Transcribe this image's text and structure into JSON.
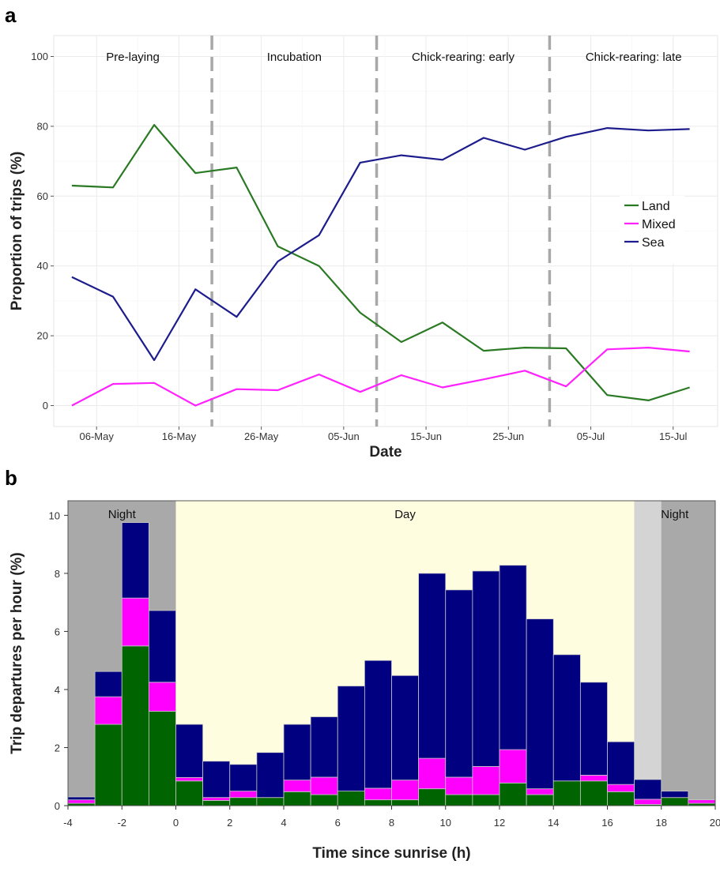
{
  "panels": {
    "a": "a",
    "b": "b"
  },
  "chart_data": [
    {
      "type": "line",
      "xlabel": "Date",
      "ylabel": "Proportion of trips (%)",
      "ylim": [
        0,
        100
      ],
      "yticks": [
        0,
        20,
        40,
        60,
        80,
        100
      ],
      "xticks": [
        "06-May",
        "16-May",
        "26-May",
        "05-Jun",
        "15-Jun",
        "25-Jun",
        "05-Jul",
        "15-Jul"
      ],
      "x": [
        "2013-05-03",
        "2013-05-08",
        "2013-05-13",
        "2013-05-18",
        "2013-05-23",
        "2013-05-28",
        "2013-06-02",
        "2013-06-07",
        "2013-06-12",
        "2013-06-17",
        "2013-06-22",
        "2013-06-27",
        "2013-07-02",
        "2013-07-07",
        "2013-07-12",
        "2013-07-17"
      ],
      "series": [
        {
          "name": "Land",
          "color": "#2a7a24",
          "values": [
            63,
            62.5,
            80.4,
            66.6,
            68.2,
            45.6,
            40,
            26.6,
            18.2,
            23.8,
            15.7,
            16.6,
            16.4,
            3,
            1.5,
            5.2
          ]
        },
        {
          "name": "Mixed",
          "color": "#ff22ff",
          "values": [
            0,
            6.2,
            6.5,
            0,
            4.7,
            4.4,
            8.9,
            3.9,
            8.7,
            5.2,
            7.5,
            10,
            5.5,
            16.1,
            16.6,
            15.5
          ]
        },
        {
          "name": "Sea",
          "color": "#1c1c8c",
          "values": [
            36.8,
            31.2,
            13,
            33.3,
            25.4,
            41.3,
            48.8,
            69.6,
            71.7,
            70.4,
            76.7,
            73.3,
            77,
            79.5,
            78.8,
            79.2
          ]
        }
      ],
      "phase_boundaries": [
        "2013-05-20",
        "2013-06-09",
        "2013-06-30"
      ],
      "phases": [
        "Pre-laying",
        "Incubation",
        "Chick-rearing: early",
        "Chick-rearing: late"
      ],
      "legend": {
        "position": "right",
        "entries": [
          "Land",
          "Mixed",
          "Sea"
        ]
      },
      "grid": true
    },
    {
      "type": "bar",
      "stacked": true,
      "xlabel": "Time since sunrise (h)",
      "ylabel": "Trip departures per hour (%)",
      "xlim": [
        -4,
        20
      ],
      "ylim": [
        0,
        10.5
      ],
      "xticks": [
        "-4",
        "-2",
        "0",
        "2",
        "4",
        "6",
        "8",
        "10",
        "12",
        "14",
        "16",
        "18",
        "20"
      ],
      "yticks": [
        "0",
        "2",
        "4",
        "6",
        "8",
        "10"
      ],
      "bins_start": -4,
      "bin_width": 1,
      "series": [
        {
          "name": "Land",
          "color": "#006400",
          "values": [
            0.08,
            2.8,
            5.5,
            3.25,
            0.85,
            0.18,
            0.28,
            0.28,
            0.48,
            0.38,
            0.5,
            0.2,
            0.2,
            0.58,
            0.38,
            0.38,
            0.78,
            0.38,
            0.85,
            0.85,
            0.48,
            0.04,
            0.28,
            0.08
          ]
        },
        {
          "name": "Mixed",
          "color": "#ff00ff",
          "values": [
            0.12,
            0.95,
            1.65,
            1.0,
            0.12,
            0.1,
            0.22,
            0.0,
            0.4,
            0.6,
            0.0,
            0.4,
            0.68,
            1.05,
            0.6,
            0.97,
            1.15,
            0.2,
            0.0,
            0.2,
            0.25,
            0.18,
            0.0,
            0.12
          ]
        },
        {
          "name": "Sea",
          "color": "#000080",
          "values": [
            0.1,
            0.87,
            2.6,
            2.47,
            1.83,
            1.25,
            0.92,
            1.55,
            1.92,
            2.08,
            3.62,
            4.4,
            3.6,
            6.37,
            6.45,
            6.73,
            6.35,
            5.85,
            4.35,
            3.2,
            1.47,
            0.68,
            0.22,
            0.0
          ]
        }
      ],
      "shading": [
        {
          "label": "Night",
          "from": -4,
          "to": 0,
          "color": "#a9a9a9"
        },
        {
          "label": "Day",
          "from": 0,
          "to": 17,
          "color": "#fffde0"
        },
        {
          "label": "Night",
          "from": 17,
          "to": 20,
          "color": "#a9a9a9"
        }
      ],
      "twilight": {
        "from": 17,
        "to": 18,
        "color": "#d4d4d4"
      },
      "grid": false
    }
  ]
}
